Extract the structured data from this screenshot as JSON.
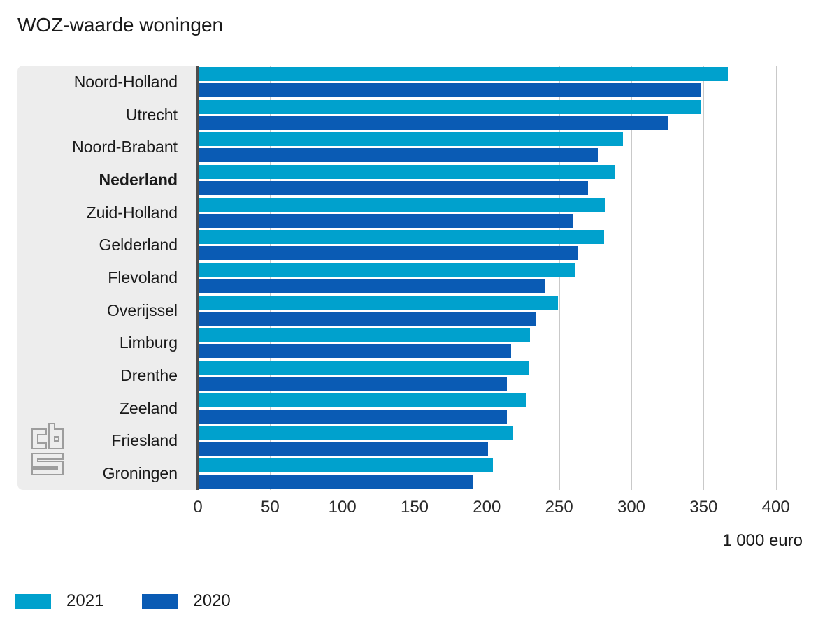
{
  "title": "WOZ-waarde woningen",
  "branding": {
    "logo": "cbs-logo",
    "logo_color": "#9d9d9d"
  },
  "colors": {
    "panel_background": "#ededed",
    "axis_line": "#4d4d4d",
    "gridline": "#c9c9c9",
    "series_2021": "#00a1cd",
    "series_2020": "#0a5bb4"
  },
  "chart_data": {
    "type": "bar",
    "orientation": "horizontal",
    "title": "WOZ-waarde woningen",
    "xlabel": "1 000 euro",
    "xlim": [
      0,
      420
    ],
    "x_ticks": [
      0,
      50,
      100,
      150,
      200,
      250,
      300,
      350,
      400
    ],
    "grid": true,
    "legend_position": "bottom-left",
    "categories": [
      "Noord-Holland",
      "Utrecht",
      "Noord-Brabant",
      "Nederland",
      "Zuid-Holland",
      "Gelderland",
      "Flevoland",
      "Overijssel",
      "Limburg",
      "Drenthe",
      "Zeeland",
      "Friesland",
      "Groningen"
    ],
    "emphasized_category": "Nederland",
    "series": [
      {
        "name": "2021",
        "color": "#00a1cd",
        "values": [
          367,
          348,
          294,
          289,
          282,
          281,
          261,
          249,
          230,
          229,
          227,
          218,
          204
        ]
      },
      {
        "name": "2020",
        "color": "#0a5bb4",
        "values": [
          348,
          325,
          277,
          270,
          260,
          263,
          240,
          234,
          217,
          214,
          214,
          201,
          190
        ]
      }
    ]
  }
}
